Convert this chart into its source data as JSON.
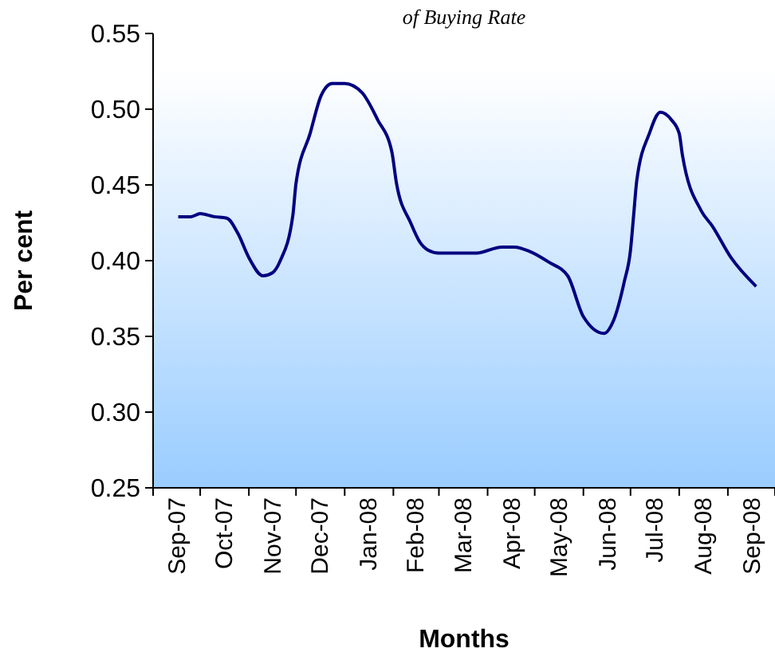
{
  "chart_data": {
    "type": "line",
    "title": "of Buying Rate",
    "xlabel": "Months",
    "ylabel": "Per cent",
    "x": [
      "2007-09-17",
      "2007-09-25",
      "2007-10-01",
      "2007-10-10",
      "2007-10-18",
      "2007-10-25",
      "2007-11-01",
      "2007-11-10",
      "2007-11-16",
      "2007-11-21",
      "2007-11-29",
      "2007-12-01",
      "2007-12-10",
      "2007-12-17",
      "2007-12-24",
      "2008-01-01",
      "2008-01-12",
      "2008-01-22",
      "2008-01-31",
      "2008-02-03",
      "2008-02-12",
      "2008-02-18",
      "2008-02-23",
      "2008-03-01",
      "2008-03-25",
      "2008-04-10",
      "2008-04-18",
      "2008-04-28",
      "2008-05-10",
      "2008-05-22",
      "2008-06-01",
      "2008-06-14",
      "2008-06-20",
      "2008-06-27",
      "2008-07-01",
      "2008-07-03",
      "2008-07-05",
      "2008-07-13",
      "2008-07-20",
      "2008-07-27",
      "2008-08-01",
      "2008-08-03",
      "2008-08-15",
      "2008-08-22",
      "2008-09-03",
      "2008-09-19"
    ],
    "series": [
      {
        "color": "#000080",
        "values": [
          0.429,
          0.429,
          0.431,
          0.429,
          0.428,
          0.418,
          0.402,
          0.39,
          0.392,
          0.4,
          0.43,
          0.451,
          0.484,
          0.509,
          0.517,
          0.517,
          0.511,
          0.493,
          0.472,
          0.451,
          0.425,
          0.412,
          0.407,
          0.405,
          0.405,
          0.409,
          0.409,
          0.406,
          0.399,
          0.39,
          0.363,
          0.352,
          0.36,
          0.386,
          0.407,
          0.43,
          0.453,
          0.484,
          0.498,
          0.493,
          0.484,
          0.47,
          0.433,
          0.423,
          0.402,
          0.383
        ]
      }
    ],
    "xlim": [
      "2007-09-01",
      "2008-10-01"
    ],
    "xticks": [
      {
        "value": "2007-09-01",
        "label": null
      },
      {
        "value": "2007-09-16",
        "label": "Sep-07"
      },
      {
        "value": "2007-10-01",
        "label": null
      },
      {
        "value": "2007-10-16",
        "label": "Oct-07"
      },
      {
        "value": "2007-11-01",
        "label": null
      },
      {
        "value": "2007-11-16",
        "label": "Nov-07"
      },
      {
        "value": "2007-12-01",
        "label": null
      },
      {
        "value": "2007-12-16",
        "label": "Dec-07"
      },
      {
        "value": "2008-01-01",
        "label": null
      },
      {
        "value": "2008-01-16",
        "label": "Jan-08"
      },
      {
        "value": "2008-02-01",
        "label": null
      },
      {
        "value": "2008-02-15",
        "label": "Feb-08"
      },
      {
        "value": "2008-03-01",
        "label": null
      },
      {
        "value": "2008-03-16",
        "label": "Mar-08"
      },
      {
        "value": "2008-04-01",
        "label": null
      },
      {
        "value": "2008-04-16",
        "label": "Apr-08"
      },
      {
        "value": "2008-05-01",
        "label": null
      },
      {
        "value": "2008-05-16",
        "label": "May-08"
      },
      {
        "value": "2008-06-01",
        "label": null
      },
      {
        "value": "2008-06-16",
        "label": "Jun-08"
      },
      {
        "value": "2008-07-01",
        "label": null
      },
      {
        "value": "2008-07-16",
        "label": "Jul-08"
      },
      {
        "value": "2008-08-01",
        "label": null
      },
      {
        "value": "2008-08-16",
        "label": "Aug-08"
      },
      {
        "value": "2008-09-01",
        "label": null
      },
      {
        "value": "2008-09-16",
        "label": "Sep-08"
      },
      {
        "value": "2008-10-01",
        "label": null
      }
    ],
    "ylim": [
      0.25,
      0.55
    ],
    "yticks": [
      {
        "value": 0.25,
        "label": "0.25"
      },
      {
        "value": 0.3,
        "label": "0.30"
      },
      {
        "value": 0.35,
        "label": "0.35"
      },
      {
        "value": 0.4,
        "label": "0.40"
      },
      {
        "value": 0.45,
        "label": "0.45"
      },
      {
        "value": 0.5,
        "label": "0.50"
      },
      {
        "value": 0.55,
        "label": "0.55"
      }
    ],
    "grid": false,
    "marker": "none",
    "line_style": "solid"
  }
}
